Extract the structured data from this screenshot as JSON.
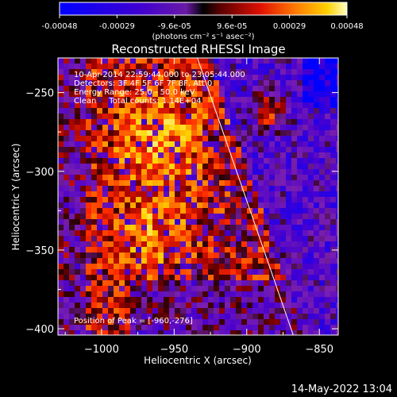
{
  "colorbar": {
    "ticks": [
      "-0.00048",
      "-0.00029",
      "-9.6e-05",
      "9.6e-05",
      "0.00029",
      "0.00048"
    ],
    "unit_label": "(photons cm⁻² s⁻¹ asec⁻²)"
  },
  "chart_data": {
    "type": "heatmap",
    "title": "Reconstructed RHESSI Image",
    "xlabel": "Heliocentric X (arcsec)",
    "ylabel": "Heliocentric Y (arcsec)",
    "xlim": [
      -1030,
      -837
    ],
    "ylim": [
      -404,
      -228
    ],
    "x_ticks": [
      -1000,
      -950,
      -900,
      -850
    ],
    "x_tick_labels": [
      "−1000",
      "−950",
      "−900",
      "−850"
    ],
    "y_ticks": [
      -250,
      -300,
      -350,
      -400
    ],
    "y_tick_labels": [
      "−250",
      "−300",
      "−350",
      "−400"
    ],
    "value_range": [
      -0.00048,
      0.00048
    ],
    "colormap": [
      "#0000ff",
      "#4a00cc",
      "#7a1fb0",
      "#2a0000",
      "#a00000",
      "#ff2a00",
      "#ff8c00",
      "#ffd400",
      "#ffffb0"
    ],
    "limb_line": [
      [
        -934,
        -228
      ],
      [
        -868,
        -404
      ]
    ],
    "peak_position": [
      -960,
      -276
    ],
    "annotations": [
      "10-Apr-2014 22:59:44.000 to 23:05:44.000",
      "Detectors: 3F 4F 5F 6F 7F 8F, Att 0",
      "Energy Range: 25.0 - 50.0 keV",
      "Clean     Total counts: 1.14E+04"
    ],
    "peak_label": "Position of Peak = [-960,-276]"
  },
  "footer": {
    "timestamp": "14-May-2022 13:04"
  }
}
